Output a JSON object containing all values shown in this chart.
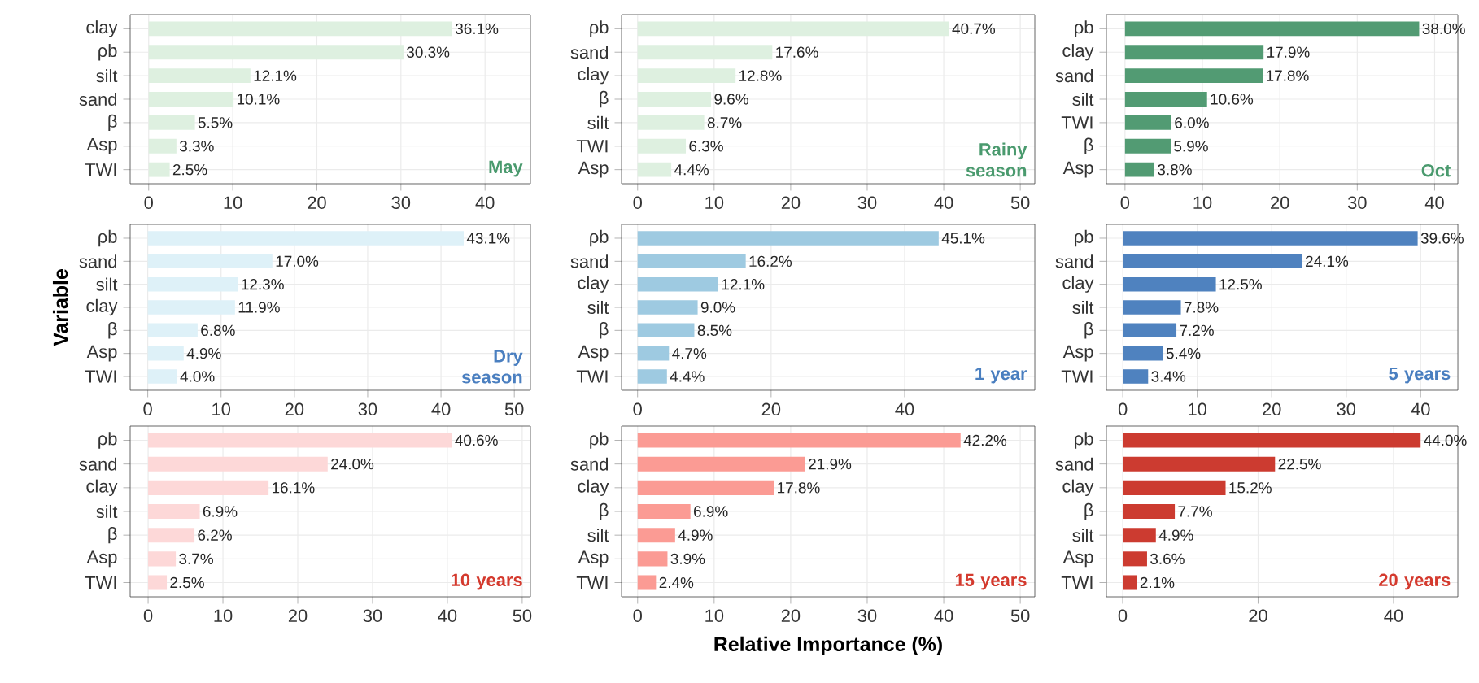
{
  "chart_data": [
    {
      "type": "bar",
      "orientation": "horizontal",
      "categories": [
        "clay",
        "ρb",
        "silt",
        "sand",
        "β",
        "Asp",
        "TWI"
      ],
      "values": [
        36.1,
        30.3,
        12.1,
        10.1,
        5.5,
        3.3,
        2.5
      ],
      "value_labels": [
        "36.1%",
        "30.3%",
        "12.1%",
        "10.1%",
        "5.5%",
        "3.3%",
        "2.5%"
      ],
      "color": "#def0e0",
      "xlim": [
        -2.2,
        45.4
      ],
      "xticks": [
        0,
        10,
        20,
        30,
        40
      ],
      "grid": true,
      "annotations": [
        "May"
      ]
    },
    {
      "type": "bar",
      "orientation": "horizontal",
      "categories": [
        "ρb",
        "sand",
        "clay",
        "β",
        "silt",
        "TWI",
        "Asp"
      ],
      "values": [
        40.7,
        17.6,
        12.8,
        9.6,
        8.7,
        6.3,
        4.4
      ],
      "value_labels": [
        "40.7%",
        "17.6%",
        "12.8%",
        "9.6%",
        "8.7%",
        "6.3%",
        "4.4%"
      ],
      "color": "#def0e0",
      "xlim": [
        -2.1,
        51.9
      ],
      "xticks": [
        0,
        10,
        20,
        30,
        40,
        50
      ],
      "grid": true,
      "annotations": [
        "Rainy season"
      ]
    },
    {
      "type": "bar",
      "orientation": "horizontal",
      "categories": [
        "ρb",
        "clay",
        "sand",
        "silt",
        "TWI",
        "β",
        "Asp"
      ],
      "values": [
        38.0,
        17.9,
        17.8,
        10.6,
        6.0,
        5.9,
        3.8
      ],
      "value_labels": [
        "38.0%",
        "17.9%",
        "17.8%",
        "10.6%",
        "6.0%",
        "5.9%",
        "3.8%"
      ],
      "color": "#529b73",
      "xlim": [
        -2.4,
        43
      ],
      "xticks": [
        0,
        10,
        20,
        30,
        40
      ],
      "grid": true,
      "annotations": [
        "Oct"
      ]
    },
    {
      "type": "bar",
      "orientation": "horizontal",
      "categories": [
        "ρb",
        "sand",
        "silt",
        "clay",
        "β",
        "Asp",
        "TWI"
      ],
      "values": [
        43.1,
        17.0,
        12.3,
        11.9,
        6.8,
        4.9,
        4.0
      ],
      "value_labels": [
        "43.1%",
        "17.0%",
        "12.3%",
        "11.9%",
        "6.8%",
        "4.9%",
        "4.0%"
      ],
      "color": "#def1f8",
      "xlim": [
        -2.4,
        52.2
      ],
      "xticks": [
        0,
        10,
        20,
        30,
        40,
        50
      ],
      "grid": true,
      "ylabel": "Variable",
      "annotations": [
        "Dry season"
      ]
    },
    {
      "type": "bar",
      "orientation": "horizontal",
      "categories": [
        "ρb",
        "sand",
        "clay",
        "silt",
        "β",
        "Asp",
        "TWI"
      ],
      "values": [
        45.1,
        16.2,
        12.1,
        9.0,
        8.5,
        4.7,
        4.4
      ],
      "value_labels": [
        "45.1%",
        "16.2%",
        "12.1%",
        "9.0%",
        "8.5%",
        "4.7%",
        "4.4%"
      ],
      "color": "#9ecae1",
      "xlim": [
        -2.4,
        59.5
      ],
      "xticks": [
        0,
        20,
        40
      ],
      "grid": true,
      "annotations": [
        "1 year"
      ]
    },
    {
      "type": "bar",
      "orientation": "horizontal",
      "categories": [
        "ρb",
        "sand",
        "clay",
        "silt",
        "β",
        "Asp",
        "TWI"
      ],
      "values": [
        39.6,
        24.1,
        12.5,
        7.8,
        7.2,
        5.4,
        3.4
      ],
      "value_labels": [
        "39.6%",
        "24.1%",
        "12.5%",
        "7.8%",
        "7.2%",
        "5.4%",
        "3.4%"
      ],
      "color": "#4f82bf",
      "xlim": [
        -2.2,
        45
      ],
      "xticks": [
        0,
        10,
        20,
        30,
        40
      ],
      "grid": true,
      "annotations": [
        "5 years"
      ]
    },
    {
      "type": "bar",
      "orientation": "horizontal",
      "categories": [
        "ρb",
        "sand",
        "clay",
        "silt",
        "β",
        "Asp",
        "TWI"
      ],
      "values": [
        40.6,
        24.0,
        16.1,
        6.9,
        6.2,
        3.7,
        2.5
      ],
      "value_labels": [
        "40.6%",
        "24.0%",
        "16.1%",
        "6.9%",
        "6.2%",
        "3.7%",
        "2.5%"
      ],
      "color": "#fdd8d8",
      "xlim": [
        -2.4,
        51.1
      ],
      "xticks": [
        0,
        10,
        20,
        30,
        40,
        50
      ],
      "grid": true,
      "annotations": [
        "10 years"
      ]
    },
    {
      "type": "bar",
      "orientation": "horizontal",
      "categories": [
        "ρb",
        "sand",
        "clay",
        "β",
        "silt",
        "Asp",
        "TWI"
      ],
      "values": [
        42.2,
        21.9,
        17.8,
        6.9,
        4.9,
        3.9,
        2.4
      ],
      "value_labels": [
        "42.2%",
        "21.9%",
        "17.8%",
        "6.9%",
        "4.9%",
        "3.9%",
        "2.4%"
      ],
      "color": "#fb9b94",
      "xlim": [
        -2.1,
        51.9
      ],
      "xticks": [
        0,
        10,
        20,
        30,
        40,
        50
      ],
      "grid": true,
      "xlabel": "Relative Importance (%)",
      "annotations": [
        "15 years"
      ]
    },
    {
      "type": "bar",
      "orientation": "horizontal",
      "categories": [
        "ρb",
        "sand",
        "clay",
        "β",
        "silt",
        "Asp",
        "TWI"
      ],
      "values": [
        44.0,
        22.5,
        15.2,
        7.7,
        4.9,
        3.6,
        2.1
      ],
      "value_labels": [
        "44.0%",
        "22.5%",
        "15.2%",
        "7.7%",
        "4.9%",
        "3.6%",
        "2.1%"
      ],
      "color": "#cc3b30",
      "xlim": [
        -2.4,
        49.5
      ],
      "xticks": [
        0,
        20,
        40
      ],
      "grid": true,
      "annotations": [
        "20 years"
      ]
    }
  ]
}
